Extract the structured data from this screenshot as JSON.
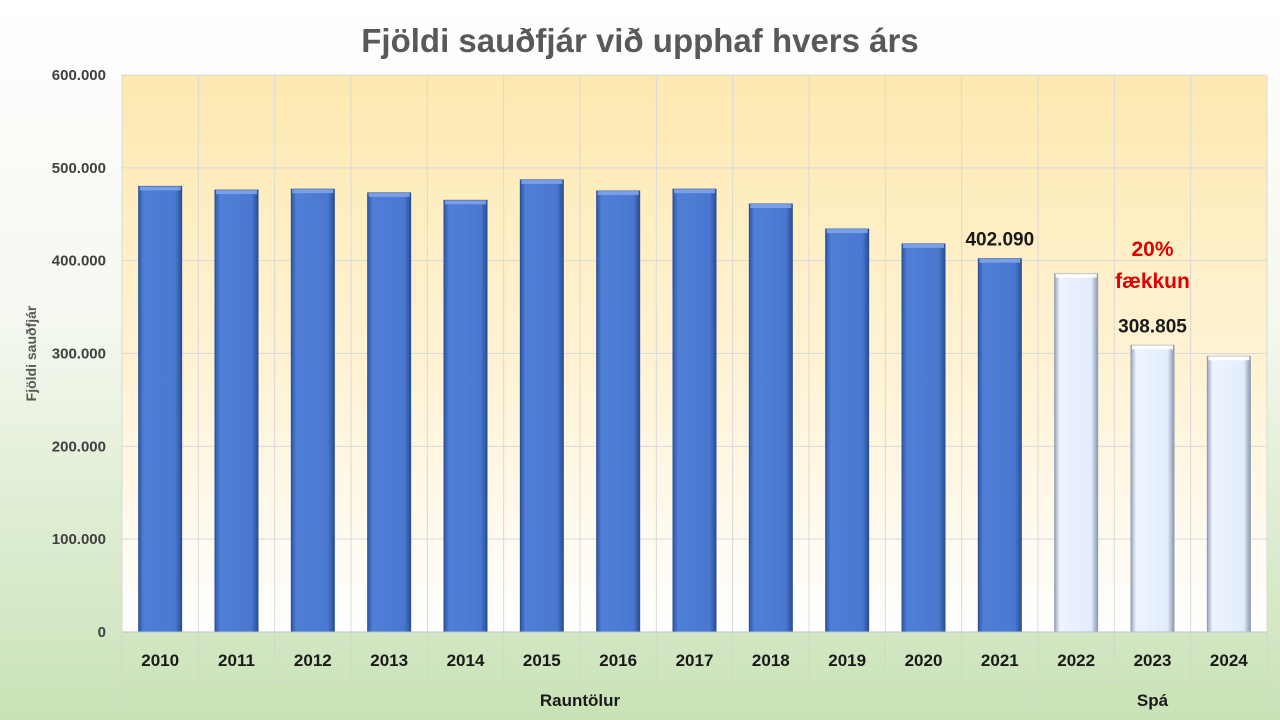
{
  "chart_data": {
    "type": "bar",
    "title": "Fjöldi sauðfjár við upphaf hvers árs",
    "ylabel": "Fjöldi sauðfjár",
    "xlabel": "",
    "ylim": [
      0,
      600000
    ],
    "yticks": [
      0,
      100000,
      200000,
      300000,
      400000,
      500000,
      600000
    ],
    "ytick_labels": [
      "0",
      "100.000",
      "200.000",
      "300.000",
      "400.000",
      "500.000",
      "600.000"
    ],
    "grid": true,
    "categories": [
      "2010",
      "2011",
      "2012",
      "2013",
      "2014",
      "2015",
      "2016",
      "2017",
      "2018",
      "2019",
      "2020",
      "2021",
      "2022",
      "2023",
      "2024"
    ],
    "values": [
      480000,
      476000,
      477000,
      473000,
      465000,
      487000,
      475000,
      477000,
      461000,
      434000,
      418000,
      402090,
      386000,
      308805,
      297000
    ],
    "groups": [
      {
        "label": "Rauntölur",
        "start": 0,
        "end": 11
      },
      {
        "label": "Spá",
        "start": 12,
        "end": 14
      }
    ],
    "data_labels": [
      {
        "index": 11,
        "text": "402.090"
      },
      {
        "index": 13,
        "text": "308.805"
      }
    ],
    "annotations": [
      {
        "lines": [
          "20%",
          "fækkun"
        ],
        "color": "#e00000"
      }
    ],
    "colors": {
      "actual_bar": "#4a78d0",
      "forecast_bar": "#e6efff",
      "plot_top": "#fde9b0",
      "plot_bottom": "#ffffff",
      "grid": "#d9d9d9"
    }
  }
}
